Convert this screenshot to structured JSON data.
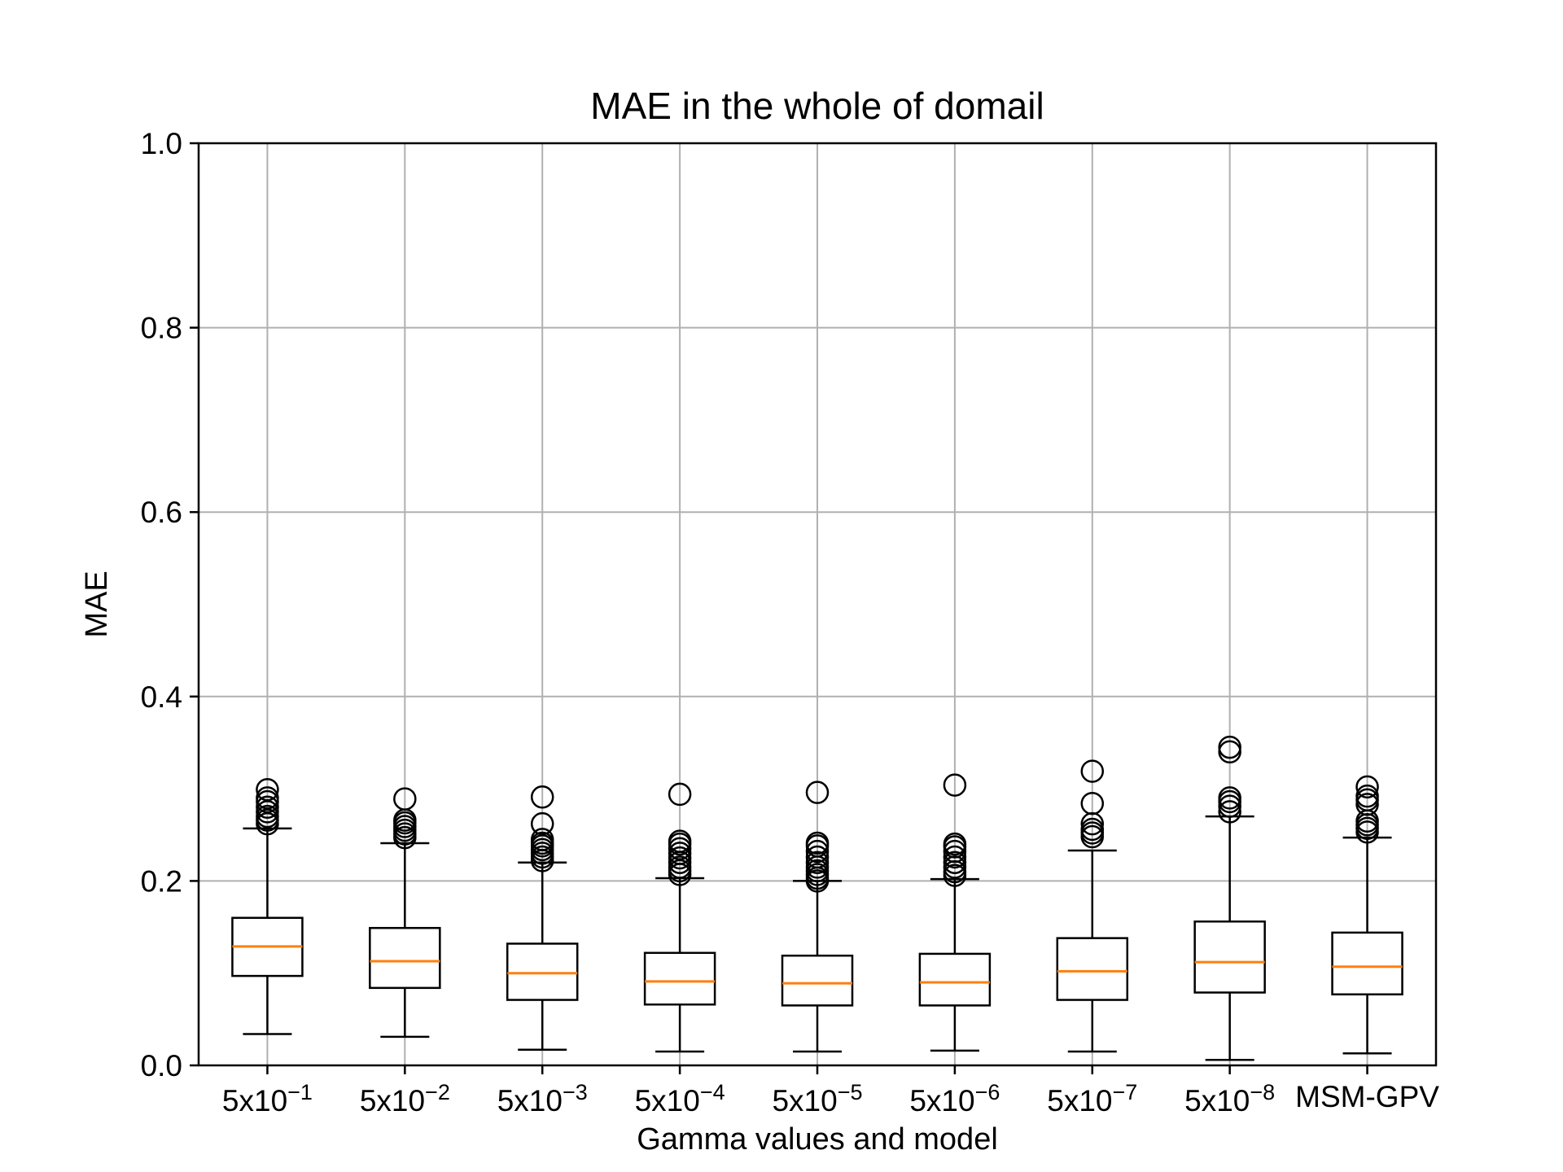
{
  "chart_data": {
    "type": "boxplot",
    "title": "MAE in the whole of domail",
    "xlabel": "Gamma values and model",
    "ylabel": "MAE",
    "ylim": [
      0.0,
      1.0
    ],
    "yticks": [
      "0.0",
      "0.2",
      "0.4",
      "0.6",
      "0.8",
      "1.0"
    ],
    "grid": true,
    "categories": [
      {
        "base": "5x10",
        "exp": "−1"
      },
      {
        "base": "5x10",
        "exp": "−2"
      },
      {
        "base": "5x10",
        "exp": "−3"
      },
      {
        "base": "5x10",
        "exp": "−4"
      },
      {
        "base": "5x10",
        "exp": "−5"
      },
      {
        "base": "5x10",
        "exp": "−6"
      },
      {
        "base": "5x10",
        "exp": "−7"
      },
      {
        "base": "5x10",
        "exp": "−8"
      },
      {
        "base": "MSM-GPV",
        "exp": ""
      }
    ],
    "boxes": [
      {
        "whislo": 0.034,
        "q1": 0.097,
        "med": 0.129,
        "q3": 0.16,
        "whishi": 0.257,
        "fliers": [
          0.262,
          0.266,
          0.27,
          0.275,
          0.28,
          0.286,
          0.29,
          0.299
        ]
      },
      {
        "whislo": 0.031,
        "q1": 0.084,
        "med": 0.113,
        "q3": 0.149,
        "whishi": 0.241,
        "fliers": [
          0.247,
          0.251,
          0.255,
          0.259,
          0.263,
          0.266,
          0.289
        ]
      },
      {
        "whislo": 0.017,
        "q1": 0.071,
        "med": 0.1,
        "q3": 0.132,
        "whishi": 0.22,
        "fliers": [
          0.222,
          0.226,
          0.23,
          0.234,
          0.238,
          0.241,
          0.245,
          0.262,
          0.291
        ]
      },
      {
        "whislo": 0.015,
        "q1": 0.066,
        "med": 0.091,
        "q3": 0.122,
        "whishi": 0.203,
        "fliers": [
          0.207,
          0.211,
          0.215,
          0.22,
          0.225,
          0.23,
          0.235,
          0.24,
          0.243,
          0.294
        ]
      },
      {
        "whislo": 0.015,
        "q1": 0.065,
        "med": 0.089,
        "q3": 0.119,
        "whishi": 0.2,
        "fliers": [
          0.2,
          0.203,
          0.207,
          0.211,
          0.215,
          0.22,
          0.226,
          0.232,
          0.238,
          0.241,
          0.296
        ]
      },
      {
        "whislo": 0.016,
        "q1": 0.065,
        "med": 0.09,
        "q3": 0.121,
        "whishi": 0.202,
        "fliers": [
          0.206,
          0.21,
          0.215,
          0.22,
          0.226,
          0.232,
          0.237,
          0.24,
          0.304
        ]
      },
      {
        "whislo": 0.015,
        "q1": 0.071,
        "med": 0.102,
        "q3": 0.138,
        "whishi": 0.233,
        "fliers": [
          0.248,
          0.252,
          0.256,
          0.262,
          0.284,
          0.319
        ]
      },
      {
        "whislo": 0.006,
        "q1": 0.079,
        "med": 0.112,
        "q3": 0.156,
        "whishi": 0.27,
        "fliers": [
          0.275,
          0.281,
          0.286,
          0.29,
          0.34,
          0.345
        ]
      },
      {
        "whislo": 0.013,
        "q1": 0.077,
        "med": 0.107,
        "q3": 0.144,
        "whishi": 0.247,
        "fliers": [
          0.253,
          0.257,
          0.261,
          0.265,
          0.283,
          0.288,
          0.292,
          0.302
        ]
      }
    ],
    "colors": {
      "box": "#000000",
      "median": "#ff7f0e",
      "grid": "#b0b0b0",
      "flier": "#000000"
    }
  }
}
